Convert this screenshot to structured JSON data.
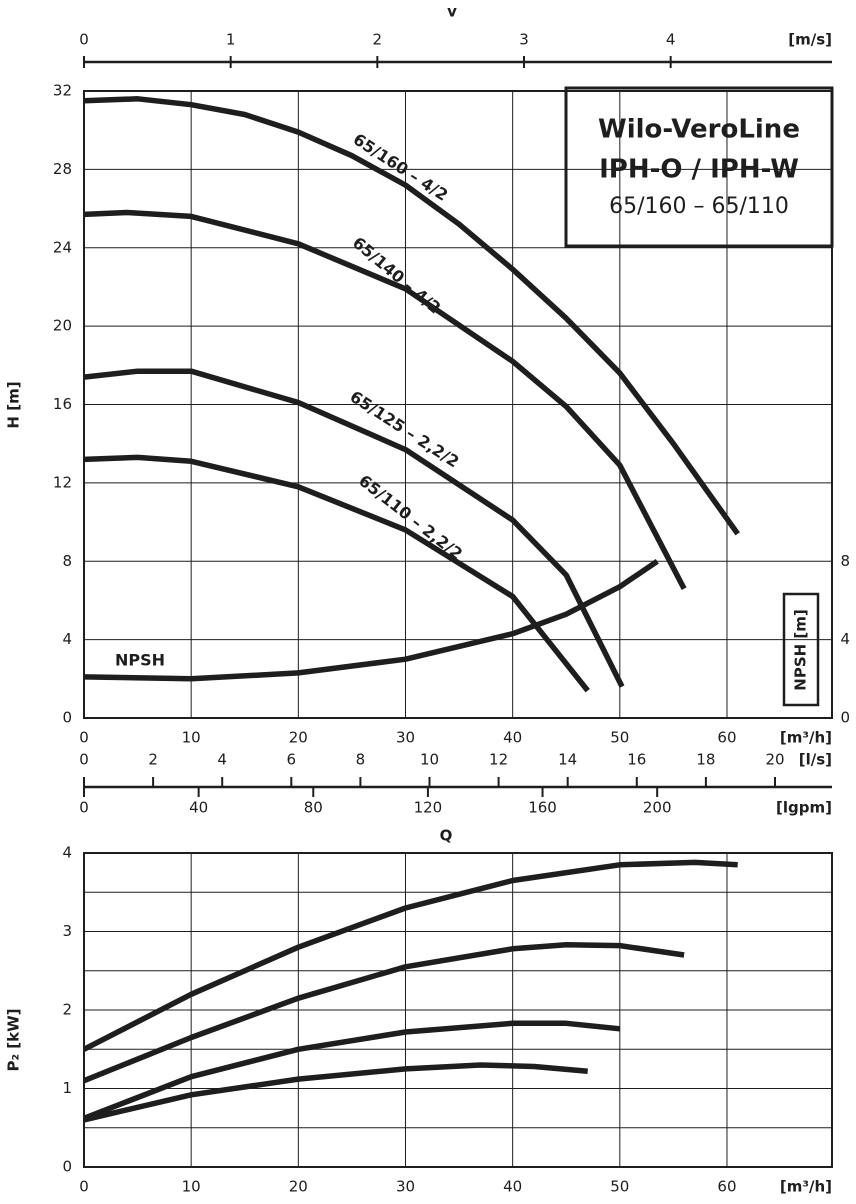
{
  "chart_data": [
    {
      "type": "line",
      "title": [
        "Wilo-VeroLine",
        "IPH-O / IPH-W",
        "65/160 – 65/110"
      ],
      "ylabel": "H [m]",
      "xlabel": "Q",
      "xunit": "[m³/h]",
      "xlim": [
        0,
        69.8
      ],
      "xticks": [
        0,
        10,
        20,
        30,
        40,
        50,
        60
      ],
      "ylim": [
        0,
        32
      ],
      "yticks": [
        0,
        4,
        8,
        12,
        16,
        20,
        24,
        28,
        32
      ],
      "y2label": "NPSH [m]",
      "y2lim": [
        0,
        32
      ],
      "y2ticks": [
        0,
        4,
        8
      ],
      "grid": true,
      "extra_axes": [
        {
          "label": "v",
          "unit": "[m/s]",
          "lim": [
            0,
            5.1
          ],
          "ticks": [
            0,
            1,
            2,
            3,
            4
          ]
        },
        {
          "unit": "[l/s]",
          "lim": [
            0,
            21.65
          ],
          "ticks": [
            0,
            2,
            4,
            6,
            8,
            10,
            12,
            14,
            16,
            18,
            20
          ]
        },
        {
          "unit": "[lgpm]",
          "lim": [
            0,
            261
          ],
          "ticks": [
            0,
            40,
            80,
            120,
            160,
            200
          ]
        }
      ],
      "series": [
        {
          "name": "65/160 – 4/2",
          "color": "#1e1e1e",
          "x": [
            0,
            5,
            10,
            15,
            20,
            25,
            30,
            35,
            40,
            45,
            50,
            55,
            61
          ],
          "values": [
            31.5,
            31.6,
            31.3,
            30.8,
            29.9,
            28.7,
            27.2,
            25.2,
            22.9,
            20.4,
            17.6,
            14.0,
            9.4
          ]
        },
        {
          "name": "65/140 – 4/2",
          "color": "#1e1e1e",
          "x": [
            0,
            4,
            10,
            20,
            30,
            40,
            45,
            50,
            56
          ],
          "values": [
            25.7,
            25.8,
            25.6,
            24.2,
            21.9,
            18.2,
            15.9,
            12.9,
            6.6
          ]
        },
        {
          "name": "65/125 – 2,2/2",
          "color": "#1e1e1e",
          "x": [
            0,
            5,
            10,
            20,
            30,
            40,
            45,
            50.2
          ],
          "values": [
            17.4,
            17.7,
            17.7,
            16.1,
            13.7,
            10.1,
            7.3,
            1.6
          ]
        },
        {
          "name": "65/110 – 2,2/2",
          "color": "#1e1e1e",
          "x": [
            0,
            5,
            10,
            20,
            30,
            40,
            47
          ],
          "values": [
            13.2,
            13.3,
            13.1,
            11.8,
            9.6,
            6.2,
            1.4
          ]
        },
        {
          "name": "NPSH",
          "axis": "y2",
          "color": "#1e1e1e",
          "x": [
            0,
            10,
            20,
            30,
            40,
            45,
            50,
            53.5
          ],
          "values": [
            2.1,
            2.0,
            2.3,
            3.0,
            4.3,
            5.3,
            6.7,
            8.0
          ]
        }
      ]
    },
    {
      "type": "line",
      "ylabel": "P₂ [kW]",
      "xunit": "[m³/h]",
      "xlim": [
        0,
        69.8
      ],
      "xticks": [
        0,
        10,
        20,
        30,
        40,
        50,
        60
      ],
      "ylim": [
        0,
        4
      ],
      "yticks": [
        0,
        1,
        2,
        3,
        4
      ],
      "minor_yticks": [
        0.5,
        1.5,
        2.5,
        3.5
      ],
      "grid": true,
      "series": [
        {
          "color": "#1e1e1e",
          "x": [
            0,
            10,
            20,
            30,
            40,
            50,
            57,
            61
          ],
          "values": [
            1.5,
            2.2,
            2.8,
            3.3,
            3.65,
            3.85,
            3.88,
            3.85
          ]
        },
        {
          "color": "#1e1e1e",
          "x": [
            0,
            10,
            20,
            30,
            40,
            45,
            50,
            56
          ],
          "values": [
            1.1,
            1.65,
            2.15,
            2.55,
            2.78,
            2.83,
            2.82,
            2.7
          ]
        },
        {
          "color": "#1e1e1e",
          "x": [
            0,
            10,
            20,
            30,
            40,
            45,
            50
          ],
          "values": [
            0.62,
            1.15,
            1.5,
            1.72,
            1.83,
            1.83,
            1.76
          ]
        },
        {
          "color": "#1e1e1e",
          "x": [
            0,
            10,
            20,
            30,
            37,
            42,
            47
          ],
          "values": [
            0.6,
            0.92,
            1.12,
            1.25,
            1.3,
            1.28,
            1.22
          ]
        }
      ]
    }
  ]
}
